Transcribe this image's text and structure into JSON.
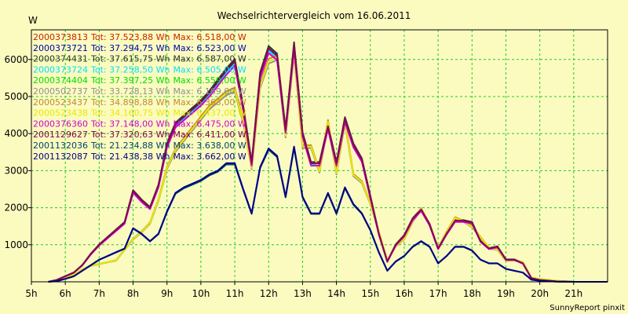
{
  "chart_data": {
    "type": "line",
    "title": "Wechselrichtervergleich vom 16.06.2011",
    "ylabel": "W",
    "footer": "SunnyReport pinxit",
    "background": "#fbfbc0",
    "grid": true,
    "grid_color": "#22cc22",
    "legend_position": "top-left",
    "ylim": [
      0,
      6800
    ],
    "yticks": [
      1000,
      2000,
      3000,
      4000,
      5000,
      6000
    ],
    "xlim": [
      5,
      22
    ],
    "xtick_labels": [
      "5h",
      "6h",
      "7h",
      "8h",
      "9h",
      "10h",
      "11h",
      "12h",
      "13h",
      "14h",
      "15h",
      "16h",
      "17h",
      "18h",
      "19h",
      "20h",
      "21h"
    ],
    "series": [
      {
        "name": "2000373813",
        "total": "Tot: 37.523,88 Wh",
        "max": "Max: 6.518,00 W",
        "color": "#cc2200",
        "profile": "A",
        "scale": 1.0
      },
      {
        "name": "2000373721",
        "total": "Tot: 37.294,75 Wh",
        "max": "Max: 6.523,00 W",
        "color": "#0000b0",
        "profile": "A",
        "scale": 0.99
      },
      {
        "name": "2000374431",
        "total": "Tot: 37.615,75 Wh",
        "max": "Max: 6.587,00 W",
        "color": "#303030",
        "profile": "A",
        "scale": 1.01
      },
      {
        "name": "2000373724",
        "total": "Tot: 37.258,50 Wh",
        "max": "Max: 6.505,00 W",
        "color": "#00e0ff",
        "profile": "A",
        "scale": 0.99
      },
      {
        "name": "2000374404",
        "total": "Tot: 37.397,25 Wh",
        "max": "Max: 6.559,00 W",
        "color": "#00dd00",
        "profile": "A",
        "scale": 1.0
      },
      {
        "name": "2000502737",
        "total": "Tot: 33.728,13 Wh",
        "max": "Max: 6.169,00 W",
        "color": "#909090",
        "profile": "B",
        "scale": 0.95
      },
      {
        "name": "2000523437",
        "total": "Tot: 34.898,88 Wh",
        "max": "Max: 6.363,00 W",
        "color": "#c08a30",
        "profile": "B",
        "scale": 0.97
      },
      {
        "name": "2000523438",
        "total": "Tot: 34.160,75 Wh",
        "max": "Max: 6.437,00 W",
        "color": "#e8e800",
        "profile": "B",
        "scale": 0.96
      },
      {
        "name": "2000376360",
        "total": "Tot: 37.148,00 Wh",
        "max": "Max: 6.475,00 W",
        "color": "#d000d0",
        "profile": "A",
        "scale": 0.98
      },
      {
        "name": "2001129627",
        "total": "Tot: 37.320,63 Wh",
        "max": "Max: 6.411,00 W",
        "color": "#880055",
        "profile": "A",
        "scale": 1.0
      },
      {
        "name": "2001132036",
        "total": "Tot: 21.234,88 Wh",
        "max": "Max: 3.638,00 W",
        "color": "#004466",
        "profile": "C",
        "scale": 0.99
      },
      {
        "name": "2001132087",
        "total": "Tot: 21.438,38 Wh",
        "max": "Max: 3.662,00 W",
        "color": "#000088",
        "profile": "C",
        "scale": 1.0
      }
    ],
    "profiles": {
      "A": [
        [
          5.5,
          0
        ],
        [
          5.75,
          50
        ],
        [
          6,
          150
        ],
        [
          6.25,
          250
        ],
        [
          6.5,
          450
        ],
        [
          6.75,
          750
        ],
        [
          7,
          1000
        ],
        [
          7.25,
          1200
        ],
        [
          7.5,
          1400
        ],
        [
          7.75,
          1600
        ],
        [
          8,
          2450
        ],
        [
          8.25,
          2200
        ],
        [
          8.5,
          2000
        ],
        [
          8.75,
          2600
        ],
        [
          9,
          3700
        ],
        [
          9.25,
          4250
        ],
        [
          9.5,
          4450
        ],
        [
          9.75,
          4650
        ],
        [
          10,
          4850
        ],
        [
          10.25,
          5100
        ],
        [
          10.5,
          5400
        ],
        [
          10.75,
          5700
        ],
        [
          11,
          5950
        ],
        [
          11.25,
          4700
        ],
        [
          11.5,
          3200
        ],
        [
          11.75,
          5600
        ],
        [
          12,
          6300
        ],
        [
          12.25,
          6100
        ],
        [
          12.5,
          4100
        ],
        [
          12.75,
          6400
        ],
        [
          13,
          4000
        ],
        [
          13.25,
          3200
        ],
        [
          13.5,
          3200
        ],
        [
          13.75,
          4200
        ],
        [
          14,
          3200
        ],
        [
          14.25,
          4400
        ],
        [
          14.5,
          3700
        ],
        [
          14.75,
          3300
        ],
        [
          15,
          2300
        ],
        [
          15.25,
          1300
        ],
        [
          15.5,
          550
        ],
        [
          15.75,
          1000
        ],
        [
          16,
          1250
        ],
        [
          16.25,
          1700
        ],
        [
          16.5,
          1950
        ],
        [
          16.75,
          1550
        ],
        [
          17,
          900
        ],
        [
          17.25,
          1300
        ],
        [
          17.5,
          1650
        ],
        [
          17.75,
          1650
        ],
        [
          18,
          1600
        ],
        [
          18.25,
          1100
        ],
        [
          18.5,
          900
        ],
        [
          18.75,
          950
        ],
        [
          19,
          600
        ],
        [
          19.25,
          600
        ],
        [
          19.5,
          500
        ],
        [
          19.75,
          100
        ],
        [
          20,
          50
        ],
        [
          20.5,
          10
        ],
        [
          21,
          0
        ],
        [
          22,
          0
        ]
      ],
      "B": [
        [
          5.5,
          0
        ],
        [
          5.75,
          30
        ],
        [
          6,
          120
        ],
        [
          6.25,
          200
        ],
        [
          6.5,
          350
        ],
        [
          6.75,
          450
        ],
        [
          7,
          500
        ],
        [
          7.25,
          550
        ],
        [
          7.5,
          600
        ],
        [
          7.75,
          900
        ],
        [
          8,
          1200
        ],
        [
          8.25,
          1400
        ],
        [
          8.5,
          1650
        ],
        [
          8.75,
          2300
        ],
        [
          9,
          3200
        ],
        [
          9.25,
          3700
        ],
        [
          9.5,
          4000
        ],
        [
          9.75,
          4300
        ],
        [
          10,
          4600
        ],
        [
          10.25,
          4900
        ],
        [
          10.5,
          5100
        ],
        [
          10.75,
          5300
        ],
        [
          11,
          5400
        ],
        [
          11.25,
          4500
        ],
        [
          11.5,
          3200
        ],
        [
          11.75,
          5500
        ],
        [
          12,
          6200
        ],
        [
          12.25,
          6300
        ],
        [
          12.5,
          4100
        ],
        [
          12.75,
          6450
        ],
        [
          13,
          3800
        ],
        [
          13.25,
          3800
        ],
        [
          13.5,
          3100
        ],
        [
          13.75,
          4500
        ],
        [
          14,
          3050
        ],
        [
          14.25,
          4500
        ],
        [
          14.5,
          3000
        ],
        [
          14.75,
          2800
        ],
        [
          15,
          2200
        ],
        [
          15.25,
          1400
        ],
        [
          15.5,
          600
        ],
        [
          15.75,
          1000
        ],
        [
          16,
          1200
        ],
        [
          16.25,
          1700
        ],
        [
          16.5,
          2050
        ],
        [
          16.75,
          1600
        ],
        [
          17,
          950
        ],
        [
          17.25,
          1400
        ],
        [
          17.5,
          1800
        ],
        [
          17.75,
          1700
        ],
        [
          18,
          1550
        ],
        [
          18.25,
          1250
        ],
        [
          18.5,
          950
        ],
        [
          18.75,
          900
        ],
        [
          19,
          600
        ],
        [
          19.25,
          600
        ],
        [
          19.5,
          550
        ],
        [
          19.75,
          120
        ],
        [
          20,
          80
        ],
        [
          20.5,
          30
        ],
        [
          21,
          0
        ],
        [
          22,
          0
        ]
      ],
      "C": [
        [
          5.5,
          0
        ],
        [
          5.75,
          20
        ],
        [
          6,
          80
        ],
        [
          6.25,
          150
        ],
        [
          6.5,
          300
        ],
        [
          6.75,
          450
        ],
        [
          7,
          600
        ],
        [
          7.25,
          700
        ],
        [
          7.5,
          800
        ],
        [
          7.75,
          900
        ],
        [
          8,
          1450
        ],
        [
          8.25,
          1300
        ],
        [
          8.5,
          1100
        ],
        [
          8.75,
          1300
        ],
        [
          9,
          1900
        ],
        [
          9.25,
          2400
        ],
        [
          9.5,
          2550
        ],
        [
          9.75,
          2650
        ],
        [
          10,
          2750
        ],
        [
          10.25,
          2900
        ],
        [
          10.5,
          3000
        ],
        [
          10.75,
          3200
        ],
        [
          11,
          3200
        ],
        [
          11.25,
          2500
        ],
        [
          11.5,
          1850
        ],
        [
          11.75,
          3100
        ],
        [
          12,
          3600
        ],
        [
          12.25,
          3400
        ],
        [
          12.5,
          2300
        ],
        [
          12.75,
          3650
        ],
        [
          13,
          2300
        ],
        [
          13.25,
          1850
        ],
        [
          13.5,
          1850
        ],
        [
          13.75,
          2400
        ],
        [
          14,
          1850
        ],
        [
          14.25,
          2550
        ],
        [
          14.5,
          2100
        ],
        [
          14.75,
          1850
        ],
        [
          15,
          1400
        ],
        [
          15.25,
          800
        ],
        [
          15.5,
          300
        ],
        [
          15.75,
          550
        ],
        [
          16,
          700
        ],
        [
          16.25,
          950
        ],
        [
          16.5,
          1100
        ],
        [
          16.75,
          950
        ],
        [
          17,
          500
        ],
        [
          17.25,
          700
        ],
        [
          17.5,
          950
        ],
        [
          17.75,
          950
        ],
        [
          18,
          850
        ],
        [
          18.25,
          600
        ],
        [
          18.5,
          500
        ],
        [
          18.75,
          500
        ],
        [
          19,
          350
        ],
        [
          19.25,
          300
        ],
        [
          19.5,
          250
        ],
        [
          19.75,
          60
        ],
        [
          20,
          30
        ],
        [
          20.5,
          5
        ],
        [
          21,
          0
        ],
        [
          22,
          0
        ]
      ]
    }
  }
}
